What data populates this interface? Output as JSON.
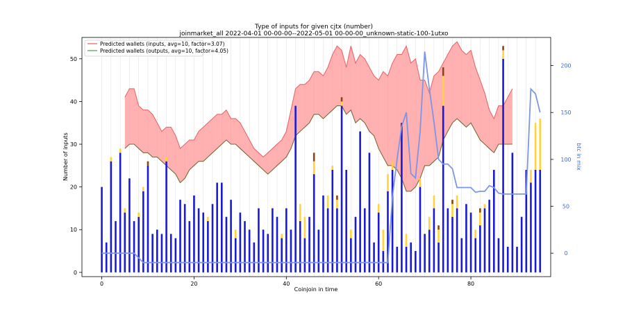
{
  "chart_data": {
    "type": "bar",
    "title": "Type of inputs for given cjtx (number)",
    "subtitle": "joinmarket_all 2022-04-01 00-00-00--2022-05-01 00-00-00_unknown-static-100-1utxo",
    "xlabel": "Coinjoin in time",
    "ylabel": "Number of inputs",
    "y2label": "btc in mix",
    "xlim": [
      -4.3,
      97.3
    ],
    "ylim": [
      -1,
      55
    ],
    "y2lim": [
      -25,
      230
    ],
    "xticks": [
      0,
      20,
      40,
      60,
      80
    ],
    "yticks": [
      0,
      10,
      20,
      30,
      40,
      50
    ],
    "y2ticks": [
      0,
      50,
      100,
      150,
      200
    ],
    "legend_position": "top-left",
    "legend": [
      {
        "label": "Predicted wallets (inputs, avg=10, factor=3.07)",
        "color": "#e8686b"
      },
      {
        "label": "Predicted wallets (outputs, avg=10, factor=4.05)",
        "color": "#5aa55a"
      }
    ],
    "bar_color": "#1a1ad6",
    "fresh_color": "#ffd23e",
    "remix_color": "#8b4513",
    "line_color": "#7b96e6",
    "band_color": "#ff9696",
    "bars": {
      "x": [
        0,
        1,
        2,
        3,
        4,
        5,
        6,
        7,
        8,
        9,
        10,
        11,
        12,
        13,
        14,
        15,
        16,
        17,
        18,
        19,
        20,
        21,
        22,
        23,
        24,
        25,
        26,
        27,
        28,
        29,
        30,
        31,
        32,
        33,
        34,
        35,
        36,
        37,
        38,
        39,
        40,
        41,
        42,
        43,
        44,
        45,
        46,
        47,
        48,
        49,
        50,
        51,
        52,
        53,
        54,
        55,
        56,
        57,
        58,
        59,
        60,
        61,
        62,
        63,
        64,
        65,
        66,
        67,
        68,
        69,
        70,
        71,
        72,
        73,
        74,
        75,
        76,
        77,
        78,
        79,
        80,
        81,
        82,
        83,
        84,
        85,
        86,
        87,
        88,
        89,
        90,
        91,
        92,
        93,
        94,
        95
      ],
      "values": [
        20,
        7,
        26,
        12,
        28,
        14,
        22,
        12,
        13,
        19,
        25,
        9,
        10,
        9,
        26,
        9,
        8,
        17,
        16,
        12,
        18,
        15,
        14,
        12,
        16,
        21,
        21,
        13,
        17,
        8,
        14,
        12,
        10,
        7,
        15,
        10,
        9,
        15,
        13,
        8,
        15,
        10,
        39,
        12,
        8,
        13,
        23,
        10,
        18,
        15,
        24,
        15,
        39,
        24,
        8,
        13,
        33,
        15,
        28,
        7,
        14,
        5,
        19,
        24,
        6,
        35,
        6,
        7,
        5,
        20,
        9,
        10,
        15,
        7,
        39,
        15,
        13,
        15,
        8,
        16,
        14,
        8,
        11,
        15,
        17,
        24,
        8,
        50,
        6,
        28,
        6,
        13,
        24,
        21,
        24,
        24
      ],
      "fresh": [
        0,
        0,
        1,
        0,
        1,
        1,
        0,
        0,
        1,
        1,
        0,
        0,
        0,
        0,
        1,
        0,
        0,
        0,
        0,
        0,
        0,
        0,
        0,
        1,
        0,
        0,
        0,
        0,
        0,
        2,
        0,
        0,
        0,
        0,
        0,
        0,
        0,
        0,
        0,
        1,
        0,
        0,
        0,
        4,
        5,
        0,
        3,
        0,
        0,
        3,
        1,
        2,
        1,
        0,
        2,
        0,
        0,
        0,
        0,
        0,
        2,
        5,
        4,
        2,
        0,
        0,
        3,
        0,
        0,
        2,
        0,
        3,
        3,
        3,
        7,
        0,
        3,
        3,
        0,
        0,
        0,
        2,
        3,
        1,
        0,
        0,
        0,
        2,
        0,
        0,
        0,
        0,
        0,
        3,
        11,
        12
      ],
      "remix": [
        0,
        0,
        0,
        0,
        0,
        0,
        0,
        0,
        0,
        0,
        1,
        0,
        0,
        0,
        0,
        0,
        0,
        0,
        0,
        0,
        0,
        0,
        0,
        0,
        0,
        0,
        0,
        0,
        0,
        0,
        0,
        0,
        0,
        0,
        0,
        0,
        0,
        0,
        0,
        0,
        0,
        0,
        0,
        0,
        0,
        0,
        2,
        0,
        0,
        0,
        0,
        1,
        1,
        0,
        0,
        0,
        0,
        0,
        0,
        0,
        0,
        0,
        0,
        0,
        0,
        0,
        0,
        0,
        0,
        0,
        0,
        0,
        0,
        1,
        2,
        0,
        1,
        0,
        0,
        0,
        0,
        0,
        1,
        0,
        0,
        0,
        0,
        1,
        0,
        0,
        0,
        0,
        0,
        0,
        0,
        0
      ]
    },
    "btc_in_mix": {
      "x": [
        0,
        7,
        9,
        60,
        61,
        62,
        63,
        64,
        65,
        66,
        67,
        68,
        69,
        70,
        71,
        72,
        73,
        74,
        75,
        76,
        77,
        78,
        79,
        80,
        81,
        82,
        83,
        84,
        85,
        86,
        87,
        88,
        89,
        90,
        91,
        92,
        93,
        94,
        95
      ],
      "values": [
        0,
        0,
        -10,
        -10,
        -10,
        -10,
        60,
        100,
        135,
        150,
        85,
        80,
        130,
        215,
        175,
        140,
        100,
        95,
        95,
        90,
        70,
        70,
        70,
        70,
        65,
        66,
        66,
        72,
        70,
        64,
        63,
        63,
        63,
        63,
        63,
        63,
        175,
        170,
        150
      ]
    },
    "predicted_inputs": {
      "x": [
        5,
        6,
        7,
        8,
        9,
        10,
        11,
        12,
        13,
        14,
        15,
        16,
        17,
        18,
        19,
        20,
        21,
        22,
        23,
        24,
        25,
        26,
        27,
        28,
        29,
        30,
        31,
        32,
        33,
        34,
        35,
        36,
        37,
        38,
        39,
        40,
        41,
        42,
        43,
        44,
        45,
        46,
        47,
        48,
        49,
        50,
        51,
        52,
        53,
        54,
        55,
        56,
        57,
        58,
        59,
        60,
        61,
        62,
        63,
        64,
        65,
        66,
        67,
        68,
        69,
        70,
        71,
        72,
        73,
        74,
        75,
        76,
        77,
        78,
        79,
        80,
        81,
        82,
        83,
        84,
        85,
        86,
        87,
        88,
        89
      ],
      "values": [
        41,
        43,
        43,
        39,
        38,
        38,
        37,
        35,
        33,
        34,
        34,
        32,
        29,
        30,
        31,
        31,
        33,
        34,
        35,
        36,
        37,
        37,
        38,
        36,
        36,
        35,
        33,
        31,
        29,
        28,
        27,
        28,
        29,
        30,
        31,
        33,
        38,
        43,
        44,
        44,
        45,
        47,
        47,
        46,
        48,
        51,
        53,
        52,
        48,
        53,
        49,
        51,
        50,
        48,
        46,
        45,
        47,
        46,
        49,
        51,
        51,
        53,
        49,
        50,
        45,
        45,
        42,
        46,
        47,
        49,
        51,
        53,
        54,
        52,
        51,
        52,
        48,
        45,
        42,
        38,
        36,
        39,
        39,
        41,
        43
      ]
    },
    "predicted_outputs": {
      "x": [
        5,
        6,
        7,
        8,
        9,
        10,
        11,
        12,
        13,
        14,
        15,
        16,
        17,
        18,
        19,
        20,
        21,
        22,
        23,
        24,
        25,
        26,
        27,
        28,
        29,
        30,
        31,
        32,
        33,
        34,
        35,
        36,
        37,
        38,
        39,
        40,
        41,
        42,
        43,
        44,
        45,
        46,
        47,
        48,
        49,
        50,
        51,
        52,
        53,
        54,
        55,
        56,
        57,
        58,
        59,
        60,
        61,
        62,
        63,
        64,
        65,
        66,
        67,
        68,
        69,
        70,
        71,
        72,
        73,
        74,
        75,
        76,
        77,
        78,
        79,
        80,
        81,
        82,
        83,
        84,
        85,
        86,
        87,
        88,
        89
      ],
      "values": [
        29,
        30,
        30,
        29,
        28,
        28,
        27,
        27,
        26,
        25,
        24,
        23,
        21,
        22,
        24,
        25,
        26,
        26,
        27,
        28,
        29,
        30,
        31,
        30,
        30,
        29,
        28,
        27,
        26,
        25,
        24,
        23,
        24,
        25,
        26,
        27,
        29,
        32,
        33,
        34,
        35,
        37,
        37,
        36,
        37,
        38,
        39,
        39,
        37,
        38,
        35,
        36,
        35,
        33,
        32,
        29,
        27,
        25,
        25,
        24,
        22,
        19,
        19,
        20,
        22,
        25,
        25,
        26,
        27,
        31,
        33,
        35,
        36,
        35,
        34,
        35,
        33,
        31,
        30,
        29,
        28,
        30,
        30,
        30,
        30
      ]
    }
  }
}
